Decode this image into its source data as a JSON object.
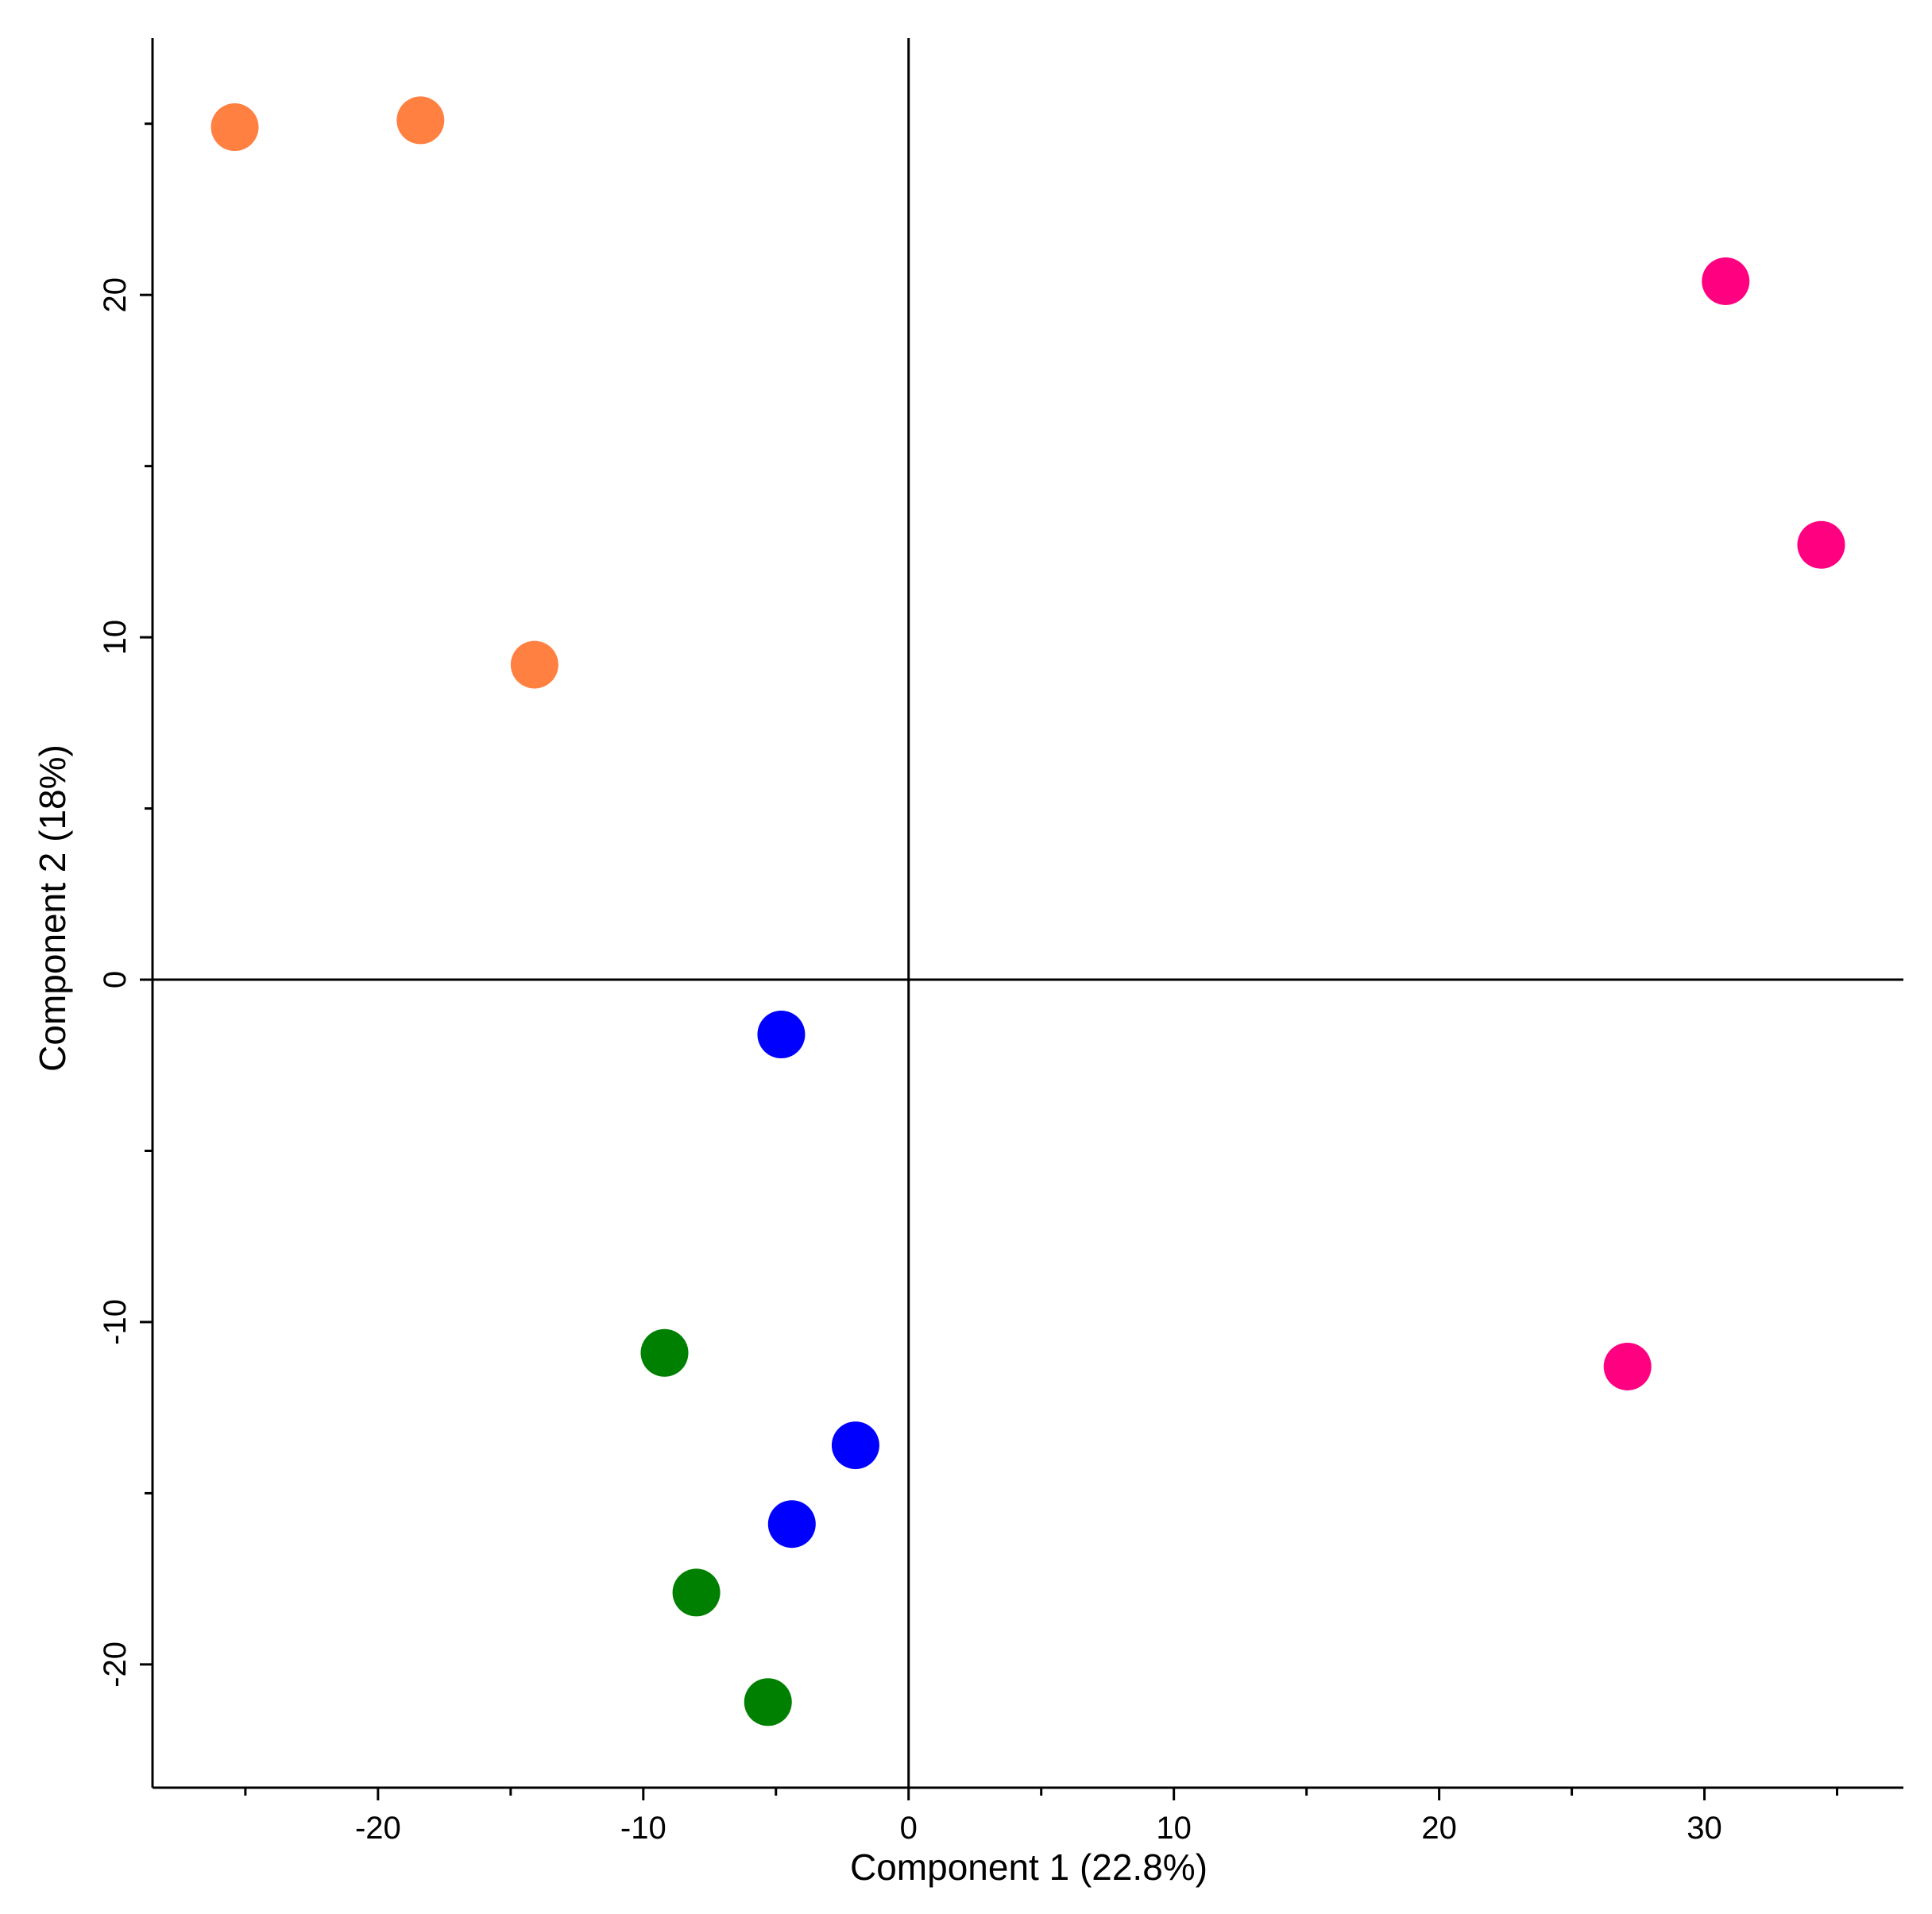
{
  "chart_data": {
    "type": "scatter",
    "xlabel": "Component 1 (22.8%)",
    "ylabel": "Component 2 (18%)",
    "xlim": [
      -28.5,
      37.5
    ],
    "ylim": [
      -23.6,
      27.5
    ],
    "x_major_ticks": [
      -20,
      -10,
      0,
      10,
      20,
      30
    ],
    "x_minor_ticks": [
      -25,
      -15,
      -5,
      5,
      15,
      25,
      35
    ],
    "y_major_ticks": [
      -20,
      -10,
      0,
      10,
      20
    ],
    "y_minor_ticks": [
      -15,
      -5,
      5,
      15,
      25
    ],
    "grid": false,
    "zero_lines": true,
    "series": [
      {
        "color": "#ff8040",
        "points": [
          [
            -25.4,
            24.9
          ],
          [
            -18.4,
            25.1
          ],
          [
            -14.1,
            9.2
          ]
        ]
      },
      {
        "color": "#ff0080",
        "points": [
          [
            30.8,
            20.4
          ],
          [
            34.4,
            12.7
          ],
          [
            27.1,
            -11.3
          ]
        ]
      },
      {
        "color": "#0000ff",
        "points": [
          [
            -4.8,
            -1.6
          ],
          [
            -2.0,
            -13.6
          ],
          [
            -4.4,
            -15.9
          ]
        ]
      },
      {
        "color": "#008000",
        "points": [
          [
            -9.2,
            -10.9
          ],
          [
            -8.0,
            -17.9
          ],
          [
            -5.3,
            -21.1
          ]
        ]
      }
    ]
  }
}
